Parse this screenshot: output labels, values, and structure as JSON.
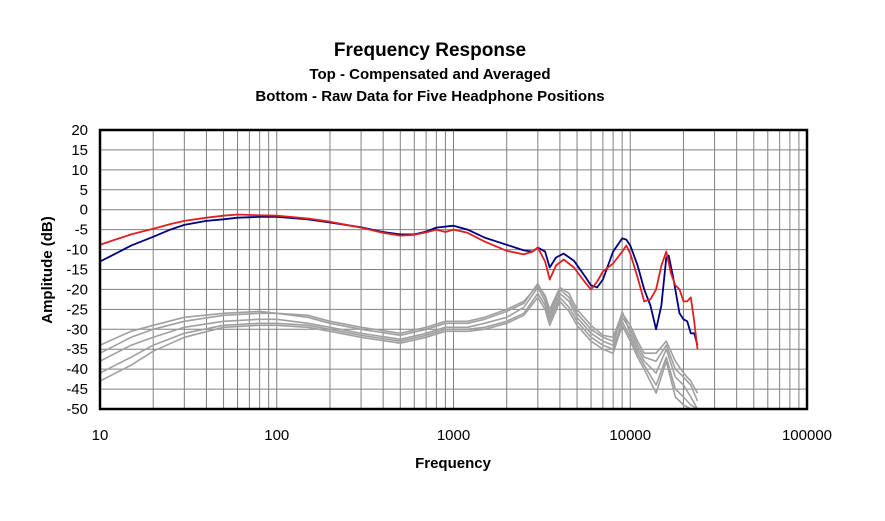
{
  "chart_data": {
    "type": "line",
    "title": "Frequency Response",
    "subtitle_lines": [
      "Top -  Compensated and Averaged",
      "Bottom - Raw Data for Five Headphone Positions"
    ],
    "xlabel": "Frequency",
    "ylabel": "Amplitude (dB)",
    "xscale": "log",
    "xlim": [
      10,
      100000
    ],
    "ylim": [
      -50,
      20
    ],
    "xticks": [
      10,
      100,
      1000,
      10000,
      100000
    ],
    "xtick_labels": [
      "10",
      "100",
      "1000",
      "10000",
      "100000"
    ],
    "yticks": [
      20,
      15,
      10,
      5,
      0,
      -5,
      -10,
      -15,
      -20,
      -25,
      -30,
      -35,
      -40,
      -45,
      -50
    ],
    "ytick_labels": [
      "20",
      "15",
      "10",
      "5",
      "0",
      "-5",
      "-10",
      "-15",
      "-20",
      "-25",
      "-30",
      "-35",
      "-40",
      "-45",
      "-50"
    ],
    "grid": true,
    "legend": "none",
    "series": [
      {
        "color": "#000080",
        "points": [
          [
            10,
            -13
          ],
          [
            12,
            -11.2
          ],
          [
            15,
            -9
          ],
          [
            20,
            -6.8
          ],
          [
            25,
            -5
          ],
          [
            30,
            -3.8
          ],
          [
            40,
            -2.8
          ],
          [
            50,
            -2.4
          ],
          [
            60,
            -2
          ],
          [
            80,
            -1.8
          ],
          [
            100,
            -1.8
          ],
          [
            150,
            -2.4
          ],
          [
            200,
            -3.2
          ],
          [
            300,
            -4.4
          ],
          [
            400,
            -5.6
          ],
          [
            500,
            -6.2
          ],
          [
            600,
            -6.2
          ],
          [
            700,
            -5.5
          ],
          [
            800,
            -4.5
          ],
          [
            1000,
            -4
          ],
          [
            1200,
            -5
          ],
          [
            1500,
            -7
          ],
          [
            2000,
            -8.8
          ],
          [
            2500,
            -10.2
          ],
          [
            2800,
            -10.5
          ],
          [
            3000,
            -9.5
          ],
          [
            3300,
            -10.5
          ],
          [
            3500,
            -14.5
          ],
          [
            3800,
            -12
          ],
          [
            4200,
            -11
          ],
          [
            4800,
            -12.8
          ],
          [
            5500,
            -16.5
          ],
          [
            6000,
            -19
          ],
          [
            6500,
            -19.5
          ],
          [
            7000,
            -17.5
          ],
          [
            8000,
            -10.5
          ],
          [
            9000,
            -7.2
          ],
          [
            9500,
            -7.5
          ],
          [
            10000,
            -9
          ],
          [
            11000,
            -14
          ],
          [
            12000,
            -20
          ],
          [
            13000,
            -24
          ],
          [
            14000,
            -30
          ],
          [
            15000,
            -24
          ],
          [
            16000,
            -12
          ],
          [
            16500,
            -11.5
          ],
          [
            17500,
            -17
          ],
          [
            19000,
            -26
          ],
          [
            20000,
            -27.5
          ],
          [
            21000,
            -28
          ],
          [
            22000,
            -31
          ],
          [
            23000,
            -31
          ],
          [
            24000,
            -34
          ]
        ]
      },
      {
        "color": "#e02020",
        "points": [
          [
            10,
            -8.8
          ],
          [
            12,
            -7.6
          ],
          [
            15,
            -6.2
          ],
          [
            20,
            -4.8
          ],
          [
            25,
            -3.6
          ],
          [
            30,
            -2.8
          ],
          [
            40,
            -2
          ],
          [
            50,
            -1.5
          ],
          [
            60,
            -1.2
          ],
          [
            80,
            -1.4
          ],
          [
            100,
            -1.5
          ],
          [
            150,
            -2.2
          ],
          [
            200,
            -3
          ],
          [
            300,
            -4.5
          ],
          [
            400,
            -5.8
          ],
          [
            500,
            -6.5
          ],
          [
            600,
            -6.3
          ],
          [
            700,
            -5.7
          ],
          [
            800,
            -5
          ],
          [
            900,
            -5.6
          ],
          [
            1000,
            -5
          ],
          [
            1200,
            -5.8
          ],
          [
            1500,
            -8
          ],
          [
            2000,
            -10.3
          ],
          [
            2500,
            -11.2
          ],
          [
            2800,
            -10.5
          ],
          [
            3000,
            -9.5
          ],
          [
            3300,
            -13
          ],
          [
            3500,
            -17.5
          ],
          [
            3800,
            -14
          ],
          [
            4200,
            -12.5
          ],
          [
            4800,
            -14.5
          ],
          [
            5500,
            -18
          ],
          [
            6000,
            -20
          ],
          [
            6500,
            -18
          ],
          [
            7000,
            -15.5
          ],
          [
            8000,
            -13.5
          ],
          [
            9000,
            -10.5
          ],
          [
            9500,
            -9
          ],
          [
            10000,
            -11
          ],
          [
            11000,
            -17
          ],
          [
            12000,
            -23
          ],
          [
            13000,
            -22.5
          ],
          [
            14000,
            -20
          ],
          [
            15000,
            -14
          ],
          [
            16000,
            -10.5
          ],
          [
            17000,
            -16
          ],
          [
            18000,
            -19
          ],
          [
            19000,
            -20
          ],
          [
            20000,
            -23
          ],
          [
            21000,
            -23
          ],
          [
            22000,
            -22
          ],
          [
            23000,
            -28
          ],
          [
            24000,
            -35
          ]
        ]
      },
      {
        "color": "#a0a0a0",
        "points": [
          [
            10,
            -36
          ],
          [
            15,
            -32
          ],
          [
            20,
            -30
          ],
          [
            30,
            -28
          ],
          [
            50,
            -26.5
          ],
          [
            80,
            -26
          ],
          [
            100,
            -26
          ],
          [
            150,
            -27
          ],
          [
            200,
            -28.5
          ],
          [
            300,
            -30
          ],
          [
            500,
            -31.5
          ],
          [
            700,
            -30
          ],
          [
            900,
            -28.5
          ],
          [
            1200,
            -28.5
          ],
          [
            1500,
            -27.5
          ],
          [
            2000,
            -25.5
          ],
          [
            2500,
            -23.5
          ],
          [
            3000,
            -18.5
          ],
          [
            3300,
            -22
          ],
          [
            3500,
            -26
          ],
          [
            4000,
            -20
          ],
          [
            4500,
            -22
          ],
          [
            5000,
            -26
          ],
          [
            6000,
            -30
          ],
          [
            7000,
            -32
          ],
          [
            8000,
            -33
          ],
          [
            9000,
            -27
          ],
          [
            10000,
            -30
          ],
          [
            11000,
            -34
          ],
          [
            12000,
            -37
          ],
          [
            14000,
            -38
          ],
          [
            16000,
            -34
          ],
          [
            18000,
            -40
          ],
          [
            20000,
            -42
          ],
          [
            22000,
            -44
          ],
          [
            24000,
            -48
          ]
        ]
      },
      {
        "color": "#a0a0a0",
        "points": [
          [
            10,
            -38
          ],
          [
            15,
            -34
          ],
          [
            20,
            -32
          ],
          [
            30,
            -29.5
          ],
          [
            50,
            -28
          ],
          [
            80,
            -27.5
          ],
          [
            100,
            -27.5
          ],
          [
            150,
            -28.5
          ],
          [
            200,
            -29.5
          ],
          [
            300,
            -31
          ],
          [
            500,
            -32.5
          ],
          [
            700,
            -31
          ],
          [
            900,
            -29.5
          ],
          [
            1200,
            -29.5
          ],
          [
            1500,
            -28.5
          ],
          [
            2000,
            -27
          ],
          [
            2500,
            -24.5
          ],
          [
            3000,
            -19.5
          ],
          [
            3300,
            -23
          ],
          [
            3500,
            -27
          ],
          [
            4000,
            -21
          ],
          [
            4500,
            -23
          ],
          [
            5000,
            -27
          ],
          [
            6000,
            -31
          ],
          [
            7000,
            -33
          ],
          [
            8000,
            -34
          ],
          [
            9000,
            -25.5
          ],
          [
            10000,
            -31
          ],
          [
            11000,
            -35
          ],
          [
            12000,
            -38
          ],
          [
            14000,
            -41
          ],
          [
            16000,
            -35
          ],
          [
            18000,
            -42
          ],
          [
            20000,
            -44
          ],
          [
            22000,
            -47
          ],
          [
            24000,
            -50
          ]
        ]
      },
      {
        "color": "#a0a0a0",
        "points": [
          [
            10,
            -34
          ],
          [
            15,
            -30.5
          ],
          [
            20,
            -29
          ],
          [
            30,
            -27
          ],
          [
            50,
            -26
          ],
          [
            80,
            -25.5
          ],
          [
            100,
            -26
          ],
          [
            150,
            -26.5
          ],
          [
            200,
            -28
          ],
          [
            300,
            -29.5
          ],
          [
            500,
            -31
          ],
          [
            700,
            -29.5
          ],
          [
            900,
            -28
          ],
          [
            1200,
            -28
          ],
          [
            1500,
            -27
          ],
          [
            2000,
            -25
          ],
          [
            2500,
            -23
          ],
          [
            3000,
            -19
          ],
          [
            3300,
            -21.5
          ],
          [
            3500,
            -25
          ],
          [
            4000,
            -19.5
          ],
          [
            4500,
            -21
          ],
          [
            5000,
            -25
          ],
          [
            6000,
            -29
          ],
          [
            7000,
            -31.5
          ],
          [
            8000,
            -32
          ],
          [
            9000,
            -26
          ],
          [
            10000,
            -29
          ],
          [
            11000,
            -33
          ],
          [
            12000,
            -36
          ],
          [
            14000,
            -36
          ],
          [
            16000,
            -33
          ],
          [
            18000,
            -38
          ],
          [
            20000,
            -41
          ],
          [
            22000,
            -43
          ],
          [
            24000,
            -46
          ]
        ]
      },
      {
        "color": "#a0a0a0",
        "points": [
          [
            10,
            -41
          ],
          [
            15,
            -37
          ],
          [
            20,
            -34
          ],
          [
            30,
            -31
          ],
          [
            50,
            -29
          ],
          [
            80,
            -28.5
          ],
          [
            100,
            -28.5
          ],
          [
            150,
            -29
          ],
          [
            200,
            -30
          ],
          [
            300,
            -31.5
          ],
          [
            500,
            -33
          ],
          [
            700,
            -31.5
          ],
          [
            900,
            -30
          ],
          [
            1200,
            -30
          ],
          [
            1500,
            -29.5
          ],
          [
            2000,
            -28
          ],
          [
            2500,
            -26
          ],
          [
            3000,
            -21
          ],
          [
            3300,
            -24
          ],
          [
            3500,
            -28
          ],
          [
            4000,
            -22
          ],
          [
            4500,
            -24.5
          ],
          [
            5000,
            -28
          ],
          [
            6000,
            -32
          ],
          [
            7000,
            -34
          ],
          [
            8000,
            -35
          ],
          [
            9000,
            -28
          ],
          [
            10000,
            -32
          ],
          [
            11000,
            -36
          ],
          [
            12000,
            -39
          ],
          [
            14000,
            -44
          ],
          [
            16000,
            -37
          ],
          [
            18000,
            -45
          ],
          [
            20000,
            -47
          ],
          [
            22000,
            -49
          ],
          [
            24000,
            -50
          ]
        ]
      },
      {
        "color": "#a0a0a0",
        "points": [
          [
            10,
            -43
          ],
          [
            15,
            -39
          ],
          [
            20,
            -35.5
          ],
          [
            30,
            -32
          ],
          [
            50,
            -29.5
          ],
          [
            80,
            -29
          ],
          [
            100,
            -29
          ],
          [
            150,
            -29.5
          ],
          [
            200,
            -30.5
          ],
          [
            300,
            -32
          ],
          [
            500,
            -33.5
          ],
          [
            700,
            -32
          ],
          [
            900,
            -30.5
          ],
          [
            1200,
            -30.5
          ],
          [
            1500,
            -30
          ],
          [
            2000,
            -28.5
          ],
          [
            2500,
            -26.5
          ],
          [
            3000,
            -22
          ],
          [
            3300,
            -25
          ],
          [
            3500,
            -29
          ],
          [
            4000,
            -23
          ],
          [
            4500,
            -25.5
          ],
          [
            5000,
            -29
          ],
          [
            6000,
            -33
          ],
          [
            7000,
            -35
          ],
          [
            8000,
            -36
          ],
          [
            9000,
            -29
          ],
          [
            10000,
            -33
          ],
          [
            11000,
            -37
          ],
          [
            12000,
            -40
          ],
          [
            14000,
            -46
          ],
          [
            16000,
            -38
          ],
          [
            18000,
            -47
          ],
          [
            20000,
            -49
          ],
          [
            22000,
            -50
          ],
          [
            24000,
            -50
          ]
        ]
      }
    ]
  }
}
